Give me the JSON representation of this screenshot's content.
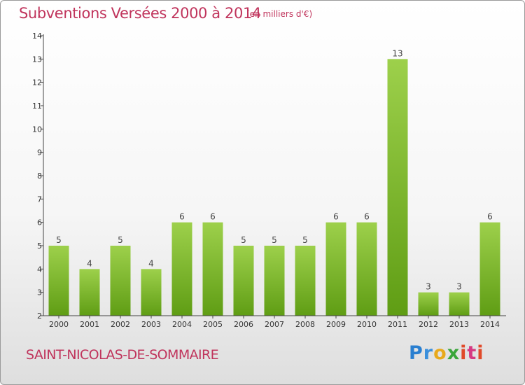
{
  "header": {
    "title": "Subventions Versées 2000 à 2014",
    "subtitle": "(en milliers d'€)"
  },
  "footer": {
    "commune": "SAINT-NICOLAS-DE-SOMMAIRE",
    "brand": "Proxiti"
  },
  "colors": {
    "title": "#c0345c",
    "bar_light": "#9dd04b",
    "bar_dark": "#5f9d14",
    "axis": "#444444"
  },
  "chart_data": {
    "type": "bar",
    "title": "Subventions Versées 2000 à 2014",
    "subtitle": "(en milliers d'€)",
    "xlabel": "",
    "ylabel": "",
    "categories": [
      "2000",
      "2001",
      "2002",
      "2003",
      "2004",
      "2005",
      "2006",
      "2007",
      "2008",
      "2009",
      "2010",
      "2011",
      "2012",
      "2013",
      "2014"
    ],
    "values": [
      5,
      4,
      5,
      4,
      6,
      6,
      5,
      5,
      5,
      6,
      6,
      13,
      3,
      3,
      6
    ],
    "data_labels": [
      "5",
      "4",
      "5",
      "4",
      "6",
      "6",
      "5",
      "5",
      "5",
      "6",
      "6",
      "13",
      "3",
      "3",
      "6"
    ],
    "ylim": [
      2,
      14
    ],
    "yticks": [
      2,
      3,
      4,
      5,
      6,
      7,
      8,
      9,
      10,
      11,
      12,
      13,
      14
    ],
    "ytick_labels": [
      "2",
      "3",
      "4",
      "5",
      "6",
      "7",
      "8",
      "9",
      "10",
      "11",
      "12",
      "13",
      "14"
    ],
    "grid": false,
    "legend": "none"
  }
}
